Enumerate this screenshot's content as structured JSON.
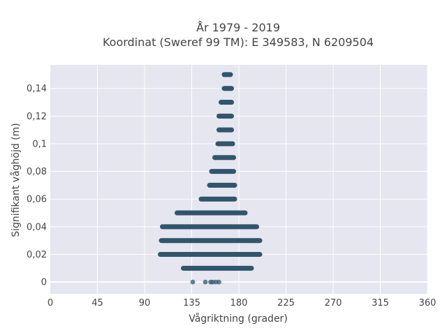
{
  "chart_data": {
    "type": "scatter",
    "title_line1": "År 1979 - 2019",
    "title_line2": "Koordinat (Sweref 99 TM): E 349583, N 6209504",
    "xlabel": "Vågriktning (grader)",
    "ylabel": "Signifikant våghöjd (m)",
    "xlim": [
      0,
      360
    ],
    "ylim": [
      -0.0085,
      0.157
    ],
    "x_ticks": [
      "0",
      "45",
      "90",
      "135",
      "180",
      "225",
      "270",
      "315",
      "360"
    ],
    "y_ticks": [
      "0",
      "0,02",
      "0,04",
      "0,06",
      "0,08",
      "0,1",
      "0,12",
      "0,14"
    ],
    "grid": true,
    "colors": {
      "marker": "#31566e",
      "plot_bg": "#e5e6ef",
      "grid": "#ffffff"
    },
    "bands": [
      {
        "y": 0.15,
        "x_min": 166,
        "x_max": 172
      },
      {
        "y": 0.14,
        "x_min": 166,
        "x_max": 173
      },
      {
        "y": 0.13,
        "x_min": 163,
        "x_max": 173
      },
      {
        "y": 0.12,
        "x_min": 161,
        "x_max": 173
      },
      {
        "y": 0.11,
        "x_min": 161,
        "x_max": 173
      },
      {
        "y": 0.1,
        "x_min": 160,
        "x_max": 174
      },
      {
        "y": 0.09,
        "x_min": 157,
        "x_max": 175
      },
      {
        "y": 0.08,
        "x_min": 154,
        "x_max": 175
      },
      {
        "y": 0.07,
        "x_min": 152,
        "x_max": 176
      },
      {
        "y": 0.06,
        "x_min": 144,
        "x_max": 176
      },
      {
        "y": 0.05,
        "x_min": 121,
        "x_max": 186
      },
      {
        "y": 0.04,
        "x_min": 107,
        "x_max": 197
      },
      {
        "y": 0.03,
        "x_min": 106,
        "x_max": 200
      },
      {
        "y": 0.02,
        "x_min": 105,
        "x_max": 200
      },
      {
        "y": 0.01,
        "x_min": 127,
        "x_max": 192
      }
    ],
    "points_zero": [
      136,
      148,
      153,
      155,
      158,
      161
    ]
  }
}
